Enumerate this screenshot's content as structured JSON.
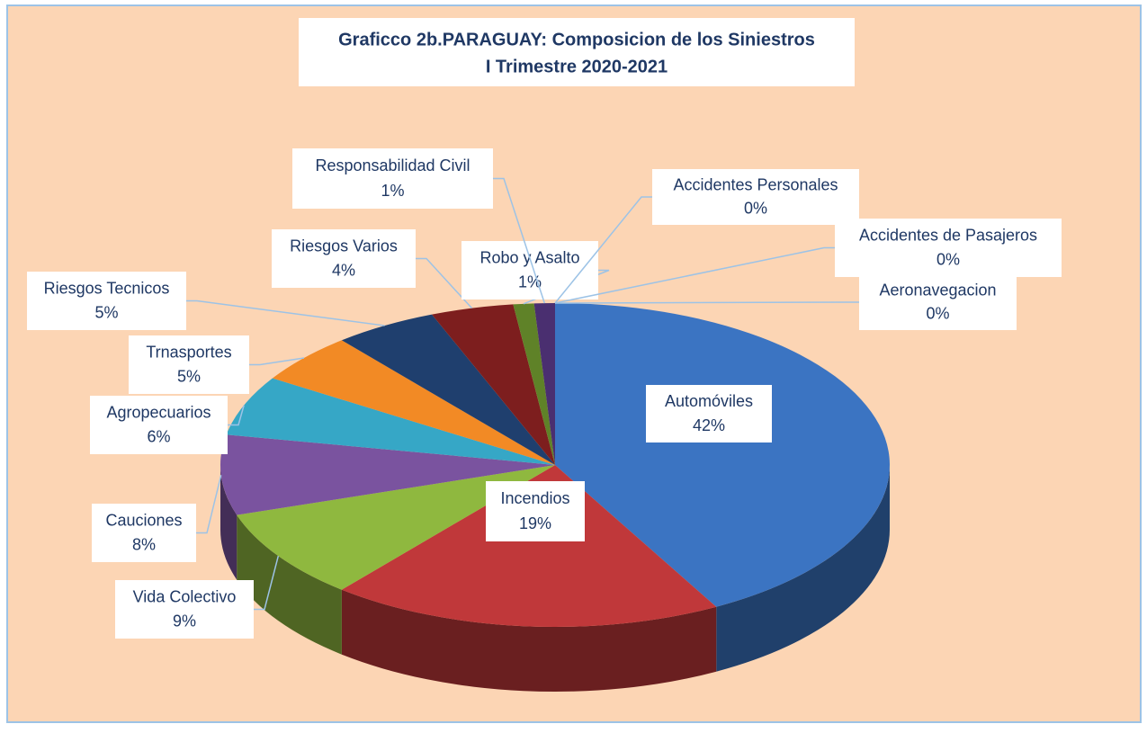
{
  "chart_data": {
    "type": "pie3d",
    "title": "Graficco 2b.PARAGUAY: Composicion de los Siniestros",
    "subtitle": "I Trimestre 2020-2021",
    "categories": [
      "Automóviles",
      "Incendios",
      "Vida Colectivo",
      "Cauciones",
      "Agropecuarios",
      "Trnasportes",
      "Riesgos Tecnicos",
      "Riesgos Varios",
      "Robo y Asalto",
      "Responsabilidad Civil",
      "Accidentes Personales",
      "Accidentes de Pasajeros",
      "Aeronavegacion"
    ],
    "values": [
      42,
      19,
      9,
      8,
      6,
      5,
      5,
      4,
      1,
      1,
      0,
      0,
      0
    ],
    "value_labels": [
      "42%",
      "19%",
      "9%",
      "8%",
      "6%",
      "5%",
      "5%",
      "4%",
      "1%",
      "1%",
      "0%",
      "0%",
      "0%"
    ],
    "colors": [
      "#3b74c2",
      "#c0383a",
      "#8fb83f",
      "#7a539f",
      "#36a7c6",
      "#f28a25",
      "#1f3f6e",
      "#7d1e1e",
      "#5f8228",
      "#4a2f70",
      "#1c6e8d",
      "#a3561b",
      "#bfbfbf"
    ]
  }
}
